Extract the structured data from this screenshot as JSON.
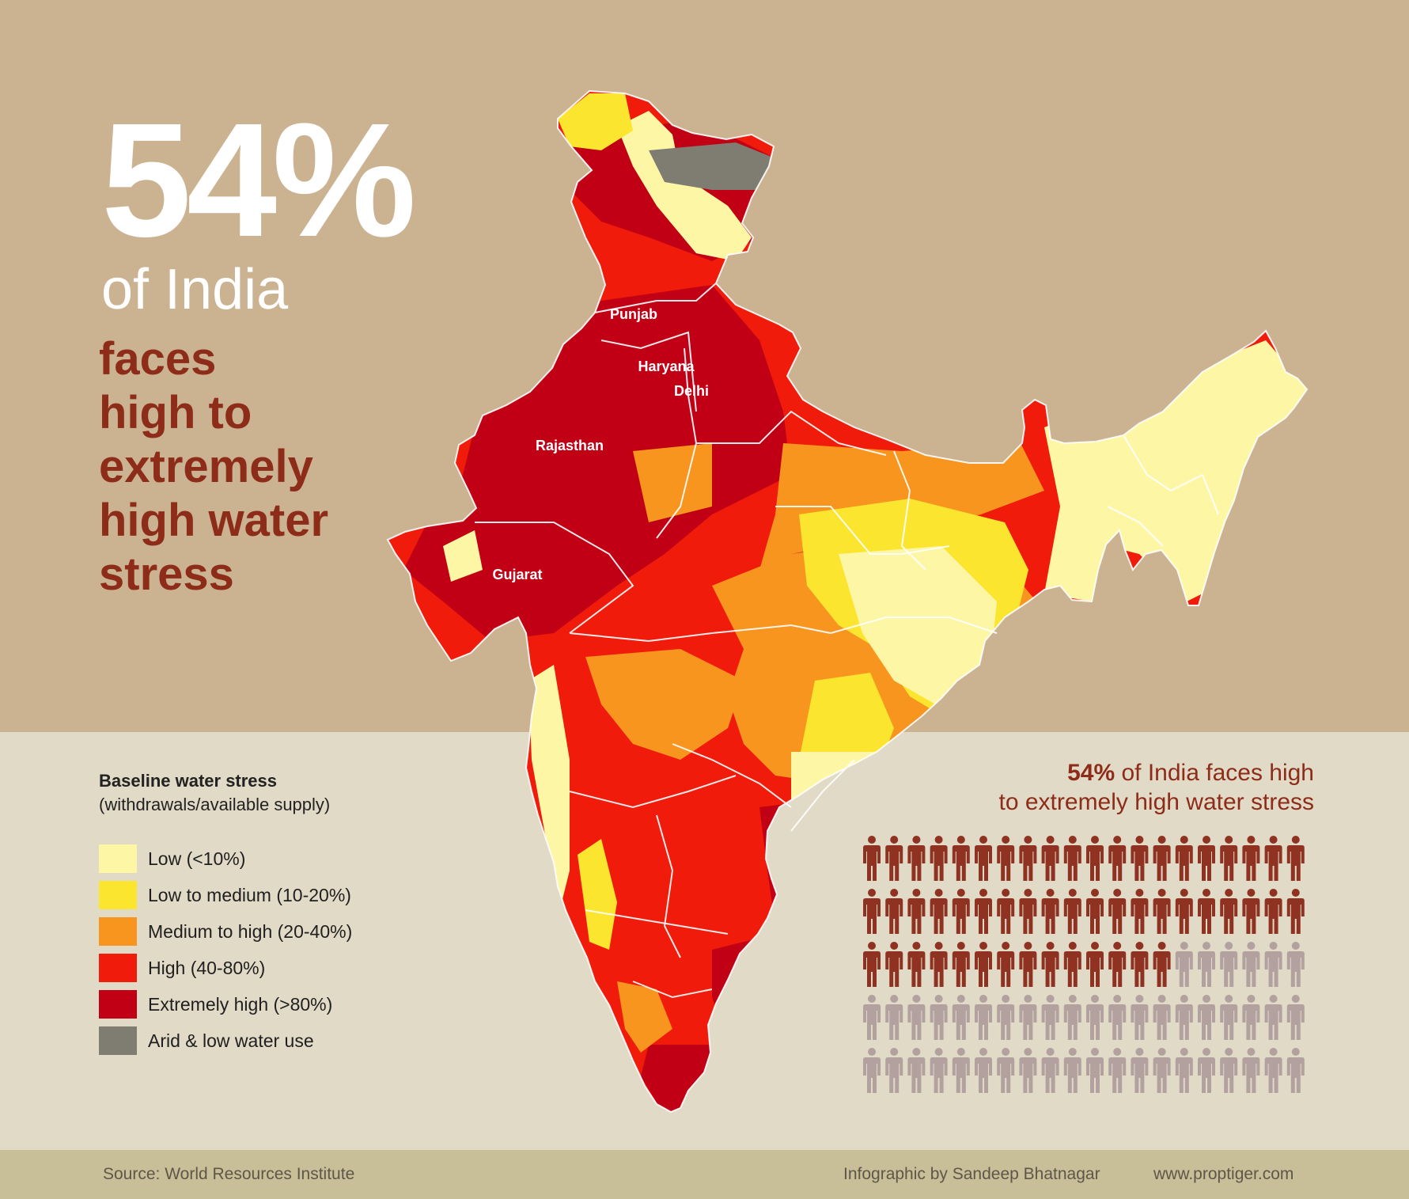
{
  "headline": {
    "percent": "54%",
    "of_india": "of India",
    "description_lines": [
      "faces",
      "high to",
      "extremely",
      "high water",
      "stress"
    ]
  },
  "map": {
    "state_labels": [
      "Punjab",
      "Haryana",
      "Delhi",
      "Rajasthan",
      "Gujarat"
    ]
  },
  "legend": {
    "title": "Baseline water stress",
    "subtitle": "(withdrawals/available supply)",
    "items": [
      {
        "label": "Low (<10%)",
        "color": "#fdf7a5"
      },
      {
        "label": "Low to medium (10-20%)",
        "color": "#fbe52e"
      },
      {
        "label": "Medium to high (20-40%)",
        "color": "#f7951e"
      },
      {
        "label": "High (40-80%)",
        "color": "#f01b0a"
      },
      {
        "label": "Extremely high (>80%)",
        "color": "#c10015"
      },
      {
        "label": "Arid & low water use",
        "color": "#7f7d72"
      }
    ]
  },
  "stat": {
    "percent": "54%",
    "line1_rest": " of India faces high",
    "line2": "to extremely high water stress",
    "filled_fraction": 0.54,
    "total_people": 100,
    "filled_color": "#8f3222",
    "empty_color": "#b2a19e"
  },
  "footer": {
    "source": "Source: World Resources Institute",
    "credit": "Infographic by Sandeep Bhatnagar",
    "url": "www.proptiger.com"
  }
}
